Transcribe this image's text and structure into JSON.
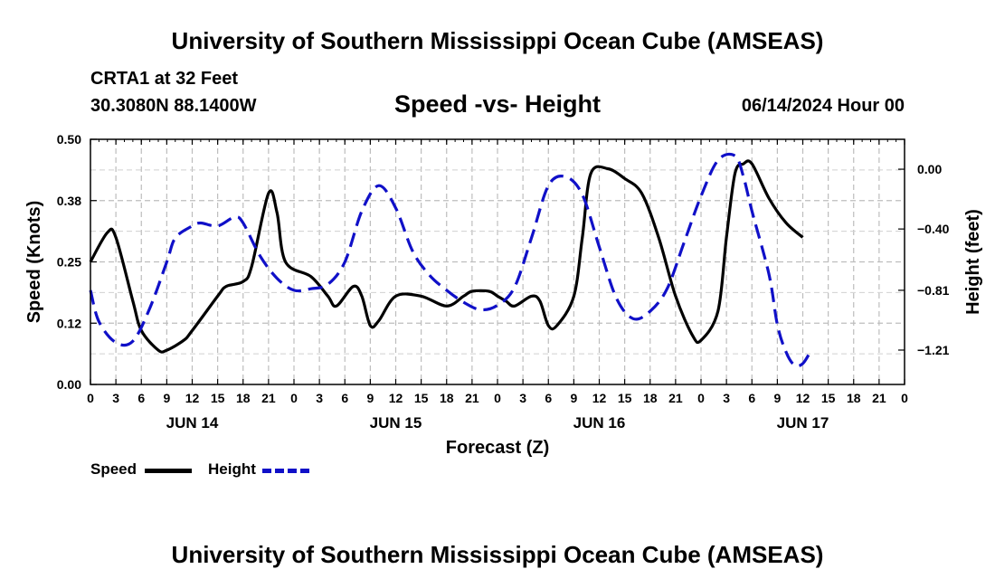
{
  "header": {
    "title": "University of Southern Mississippi Ocean Cube (AMSEAS)",
    "station": "CRTA1 at 32 Feet",
    "coords": "30.3080N  88.1400W",
    "subtitle": "Speed -vs- Height",
    "datetime": "06/14/2024 Hour 00"
  },
  "footer": {
    "title": "University of Southern Mississippi Ocean Cube (AMSEAS)"
  },
  "legend": {
    "speed": "Speed",
    "height": "Height"
  },
  "chart_data": {
    "type": "line",
    "xlabel": "Forecast (Z)",
    "ylabel": "Speed (Knots)",
    "y2label": "Height (feet)",
    "x_hour_range": [
      0,
      96
    ],
    "xticks": [
      "0",
      "3",
      "6",
      "9",
      "12",
      "15",
      "18",
      "21",
      "0",
      "3",
      "6",
      "9",
      "12",
      "15",
      "18",
      "21",
      "0",
      "3",
      "6",
      "9",
      "12",
      "15",
      "18",
      "21",
      "0",
      "3",
      "6",
      "9",
      "12",
      "15",
      "18",
      "21",
      "0"
    ],
    "day_labels": [
      {
        "hour": 12,
        "label": "JUN 14"
      },
      {
        "hour": 36,
        "label": "JUN 15"
      },
      {
        "hour": 60,
        "label": "JUN 16"
      },
      {
        "hour": 84,
        "label": "JUN 17"
      }
    ],
    "ylim": [
      0,
      0.5
    ],
    "yticks": [
      "0.00",
      "0.12",
      "0.25",
      "0.38",
      "0.50"
    ],
    "y2lim": [
      -1.44,
      0.2
    ],
    "y2ticks": [
      "0.00",
      "-0.40",
      "-0.81",
      "-1.21"
    ],
    "grid": true,
    "legend_position": "bottom-left",
    "series": [
      {
        "name": "Speed",
        "axis": "left",
        "color": "#000000",
        "dash": "solid",
        "points": [
          [
            0,
            0.25
          ],
          [
            2,
            0.31
          ],
          [
            3,
            0.3
          ],
          [
            5,
            0.17
          ],
          [
            6,
            0.11
          ],
          [
            8,
            0.07
          ],
          [
            9,
            0.07
          ],
          [
            11,
            0.09
          ],
          [
            12,
            0.11
          ],
          [
            15,
            0.18
          ],
          [
            16,
            0.2
          ],
          [
            18,
            0.21
          ],
          [
            19,
            0.24
          ],
          [
            21,
            0.39
          ],
          [
            22,
            0.35
          ],
          [
            23,
            0.25
          ],
          [
            26,
            0.22
          ],
          [
            28,
            0.18
          ],
          [
            29,
            0.16
          ],
          [
            31,
            0.2
          ],
          [
            32,
            0.18
          ],
          [
            33,
            0.12
          ],
          [
            34,
            0.13
          ],
          [
            36,
            0.18
          ],
          [
            39,
            0.18
          ],
          [
            42,
            0.16
          ],
          [
            44,
            0.18
          ],
          [
            45,
            0.19
          ],
          [
            47,
            0.19
          ],
          [
            48,
            0.18
          ],
          [
            49,
            0.17
          ],
          [
            50,
            0.16
          ],
          [
            52,
            0.18
          ],
          [
            53,
            0.17
          ],
          [
            54,
            0.12
          ],
          [
            55,
            0.12
          ],
          [
            57,
            0.18
          ],
          [
            58,
            0.3
          ],
          [
            59,
            0.43
          ],
          [
            61,
            0.44
          ],
          [
            63,
            0.42
          ],
          [
            65,
            0.39
          ],
          [
            67,
            0.3
          ],
          [
            69,
            0.18
          ],
          [
            71,
            0.1
          ],
          [
            72,
            0.09
          ],
          [
            74,
            0.15
          ],
          [
            75,
            0.3
          ],
          [
            76,
            0.43
          ],
          [
            77,
            0.45
          ],
          [
            78,
            0.45
          ],
          [
            80,
            0.38
          ],
          [
            82,
            0.33
          ],
          [
            84,
            0.3
          ]
        ]
      },
      {
        "name": "Height",
        "axis": "right",
        "color": "#1010c8",
        "dash": "dashed",
        "points": [
          [
            0,
            -0.81
          ],
          [
            1,
            -1.02
          ],
          [
            3,
            -1.16
          ],
          [
            5,
            -1.15
          ],
          [
            7,
            -0.93
          ],
          [
            9,
            -0.62
          ],
          [
            10,
            -0.46
          ],
          [
            12,
            -0.38
          ],
          [
            13,
            -0.36
          ],
          [
            15,
            -0.38
          ],
          [
            17,
            -0.32
          ],
          [
            18,
            -0.36
          ],
          [
            20,
            -0.58
          ],
          [
            22,
            -0.73
          ],
          [
            24,
            -0.81
          ],
          [
            26,
            -0.8
          ],
          [
            28,
            -0.77
          ],
          [
            30,
            -0.62
          ],
          [
            32,
            -0.28
          ],
          [
            34,
            -0.11
          ],
          [
            36,
            -0.26
          ],
          [
            38,
            -0.55
          ],
          [
            40,
            -0.71
          ],
          [
            42,
            -0.81
          ],
          [
            44,
            -0.89
          ],
          [
            46,
            -0.94
          ],
          [
            48,
            -0.91
          ],
          [
            50,
            -0.79
          ],
          [
            52,
            -0.46
          ],
          [
            54,
            -0.11
          ],
          [
            56,
            -0.05
          ],
          [
            58,
            -0.17
          ],
          [
            60,
            -0.52
          ],
          [
            62,
            -0.86
          ],
          [
            64,
            -1.0
          ],
          [
            66,
            -0.95
          ],
          [
            68,
            -0.8
          ],
          [
            70,
            -0.49
          ],
          [
            72,
            -0.18
          ],
          [
            74,
            0.06
          ],
          [
            76,
            0.09
          ],
          [
            77,
            -0.05
          ],
          [
            78,
            -0.28
          ],
          [
            80,
            -0.7
          ],
          [
            81,
            -1.04
          ],
          [
            82,
            -1.22
          ],
          [
            83,
            -1.31
          ],
          [
            84,
            -1.3
          ],
          [
            85,
            -1.21
          ]
        ]
      }
    ]
  }
}
